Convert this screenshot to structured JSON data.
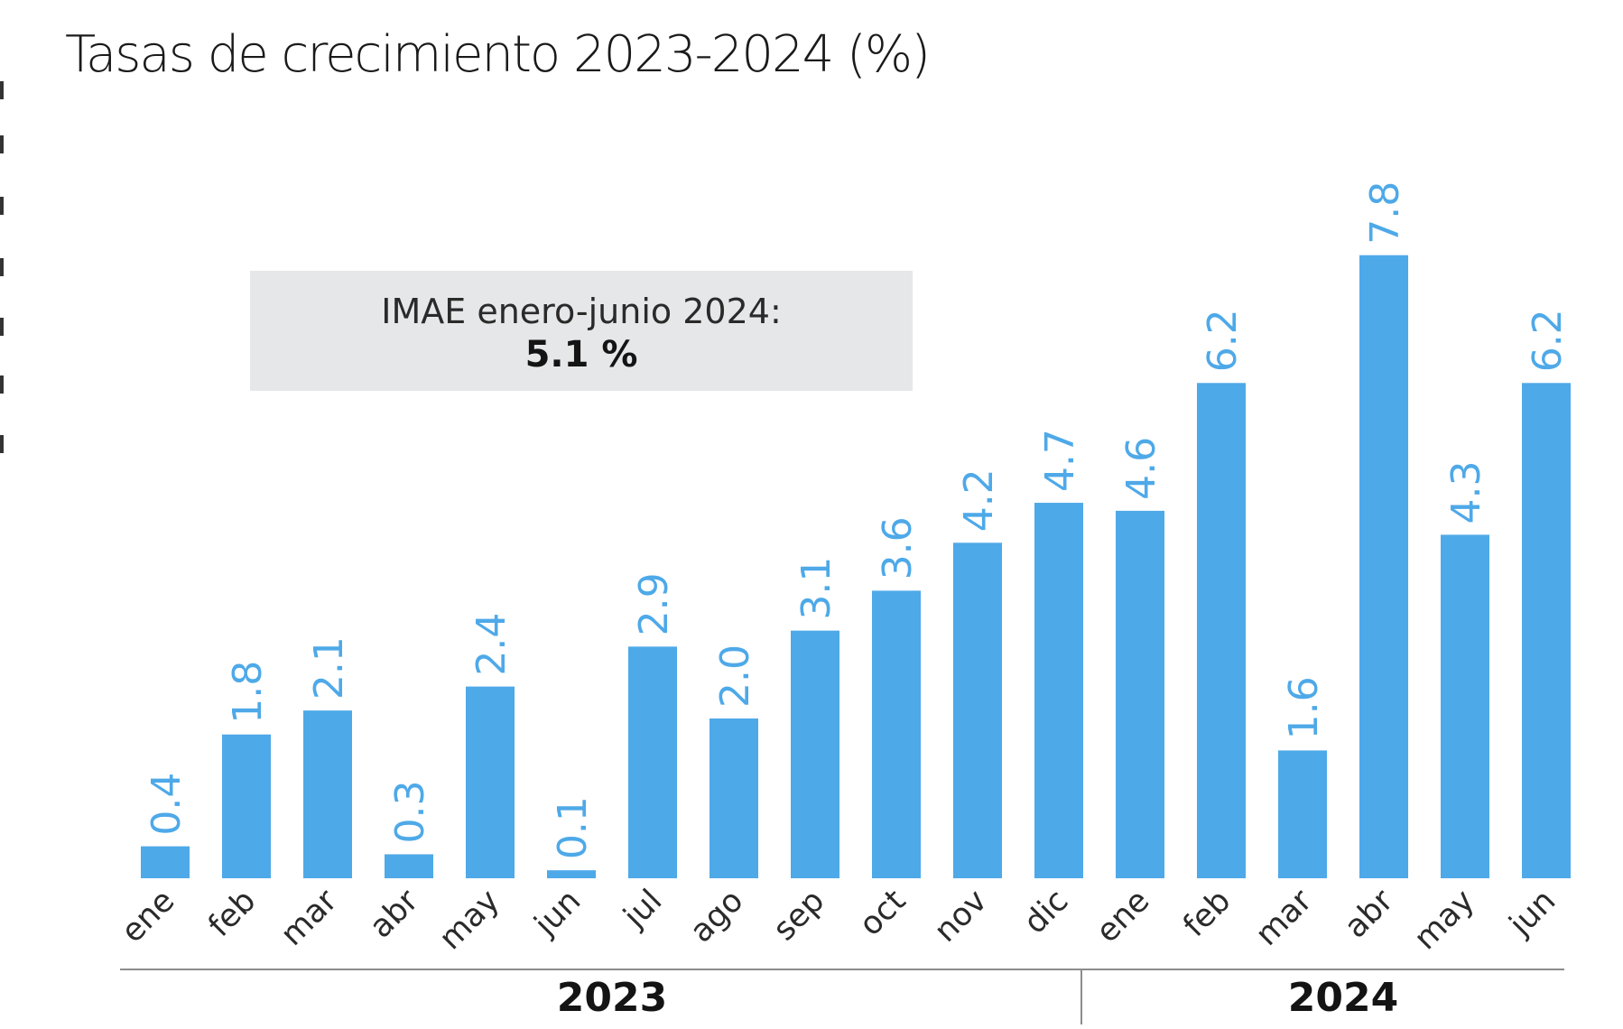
{
  "chart_data": {
    "type": "bar",
    "title": "Tasas de crecimiento 2023-2024 (%)",
    "categories": [
      "ene",
      "feb",
      "mar",
      "abr",
      "may",
      "jun",
      "jul",
      "ago",
      "sep",
      "oct",
      "nov",
      "dic",
      "ene",
      "feb",
      "mar",
      "abr",
      "may",
      "jun"
    ],
    "values": [
      0.4,
      1.8,
      2.1,
      0.3,
      2.4,
      0.1,
      2.9,
      2.0,
      3.1,
      3.6,
      4.2,
      4.7,
      4.6,
      6.2,
      1.6,
      7.8,
      4.3,
      6.2
    ],
    "value_labels": [
      "0.4",
      "1.8",
      "2.1",
      "0.3",
      "2.4",
      "0.1",
      "2.9",
      "2.0",
      "3.1",
      "3.6",
      "4.2",
      "4.7",
      "4.6",
      "6.2",
      "1.6",
      "7.8",
      "4.3",
      "6.2"
    ],
    "groups": [
      {
        "label": "2023",
        "count": 12
      },
      {
        "label": "2024",
        "count": 6
      }
    ],
    "ylim": [
      0,
      8
    ],
    "xlabel": "",
    "ylabel": "",
    "grid": false,
    "bar_color": "#4ea9e8",
    "annotation": {
      "label": "IMAE enero-junio 2024:",
      "value": "5.1 %"
    }
  }
}
